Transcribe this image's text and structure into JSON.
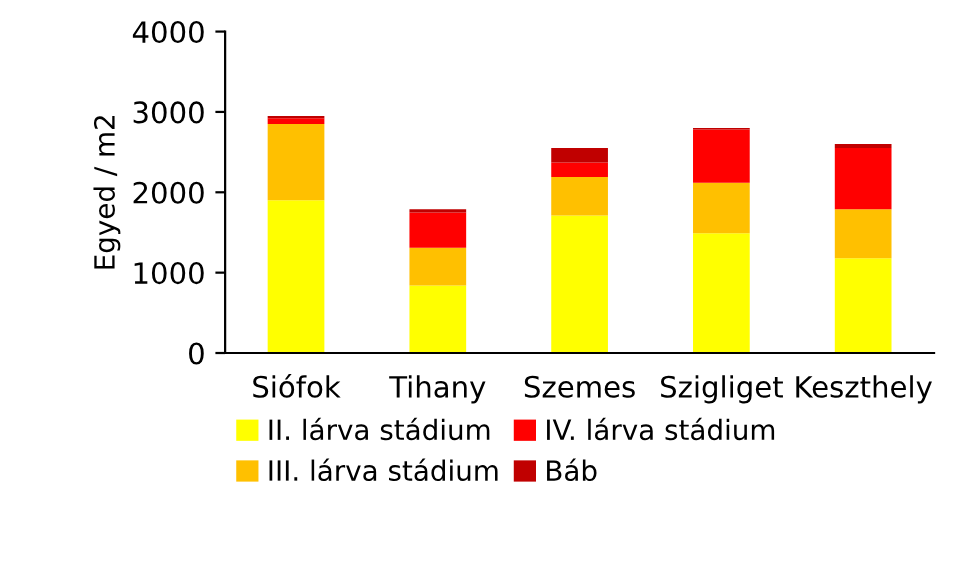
{
  "chart_data": {
    "type": "bar",
    "stacked": true,
    "ylabel": "Egyed / m2",
    "categories": [
      "Siófok",
      "Tihany",
      "Szemes",
      "Szigliget",
      "Keszthely"
    ],
    "series": [
      {
        "name": "II. lárva stádium",
        "color": "#ffff00",
        "values": [
          1900,
          840,
          1710,
          1490,
          1180
        ]
      },
      {
        "name": "III. lárva stádium",
        "color": "#ffc000",
        "values": [
          950,
          470,
          480,
          630,
          610
        ]
      },
      {
        "name": "IV. lárva stádium",
        "color": "#ff0000",
        "values": [
          70,
          440,
          180,
          660,
          760
        ]
      },
      {
        "name": "Báb",
        "color": "#c00000",
        "values": [
          30,
          40,
          180,
          20,
          50
        ]
      }
    ],
    "ylim": [
      0,
      4000
    ],
    "yticks": [
      0,
      1000,
      2000,
      3000,
      4000
    ],
    "grid": false,
    "legend": "bottom"
  }
}
